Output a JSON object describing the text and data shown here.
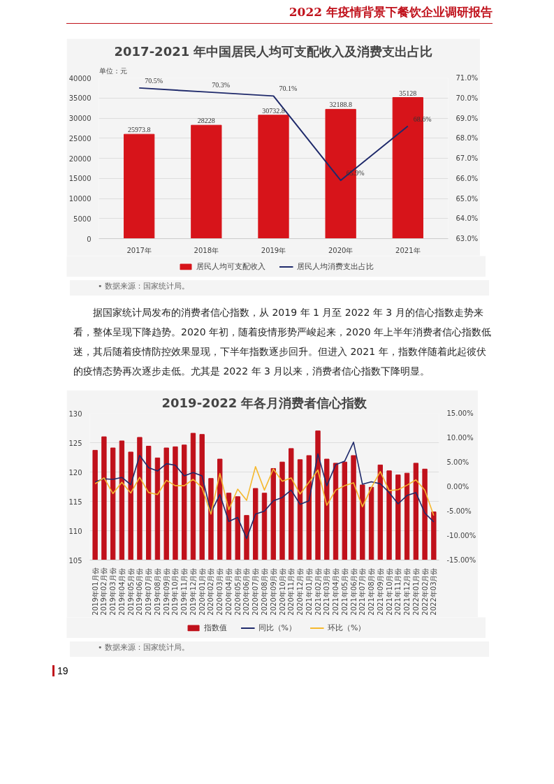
{
  "chart_data": [
    {
      "type": "other",
      "annotations": [
        "2022 年疫情背景下餐饮企业调研报告"
      ]
    },
    {
      "type": "bar",
      "title": "2017-2021 年中国居民人均可支配收入及消费支出占比",
      "ylabel": "单位：元",
      "categories": [
        "2017年",
        "2018年",
        "2019年",
        "2020年",
        "2021年"
      ],
      "series": [
        {
          "name": "居民人均可支配收入",
          "type": "bar",
          "color": "#d7141a",
          "values": [
            25973.8,
            28228,
            30732.8,
            32188.8,
            35128
          ],
          "value_labels": [
            "25973.8",
            "28228",
            "30732.8",
            "32188.8",
            "35128"
          ]
        },
        {
          "name": "居民人均消费支出占比",
          "type": "line",
          "axis": "y2",
          "color": "#1f2a6b",
          "values": [
            70.5,
            70.3,
            70.1,
            65.9,
            68.6
          ],
          "value_labels": [
            "70.5%",
            "70.3%",
            "70.1%",
            "65.9%",
            "68.6%"
          ]
        }
      ],
      "ylim": [
        0,
        40000
      ],
      "yticks": [
        0,
        5000,
        10000,
        15000,
        20000,
        25000,
        30000,
        35000,
        40000
      ],
      "y2lim": [
        63,
        71
      ],
      "y2ticks": [
        {
          "value": 63,
          "label": "63.0%"
        },
        {
          "value": 64,
          "label": "64.0%"
        },
        {
          "value": 65,
          "label": "65.0%"
        },
        {
          "value": 66,
          "label": "66.0%"
        },
        {
          "value": 67,
          "label": "67.0%"
        },
        {
          "value": 68,
          "label": "68.0%"
        },
        {
          "value": 69,
          "label": "69.0%"
        },
        {
          "value": 70,
          "label": "70.0%"
        },
        {
          "value": 71,
          "label": "71.0%"
        }
      ],
      "grid": "y",
      "legend": "bottom",
      "marker": "none",
      "annotations": [
        "• 数据来源：国家统计局。"
      ]
    },
    {
      "type": "other",
      "annotations": [
        "据国家统计局发布的消费者信心指数，从 2019 年 1 月至 2022 年 3 月的信心指数走势来看，整体呈现下降趋势。2020 年初，随着疫情形势严峻起来，2020 年上半年消费者信心指数低迷，其后随着疫情防控效果显现，下半年指数逐步回升。但进入 2021 年，指数伴随着此起彼伏的疫情态势再次逐步走低。尤其是 2022 年 3 月以来，消费者信心指数下降明显。"
      ]
    },
    {
      "type": "bar",
      "title": "2019-2022 年各月消费者信心指数",
      "categories": [
        "2019年01月份",
        "2019年02月份",
        "2019年03月份",
        "2019年04月份",
        "2019年05月份",
        "2019年06月份",
        "2019年07月份",
        "2019年08月份",
        "2019年09月份",
        "2019年10月份",
        "2019年11月份",
        "2019年12月份",
        "2020年01月份",
        "2020年02月份",
        "2020年03月份",
        "2020年04月份",
        "2020年05月份",
        "2020年06月份",
        "2020年07月份",
        "2020年08月份",
        "2020年09月份",
        "2020年10月份",
        "2020年11月份",
        "2020年12月份",
        "2021年01月份",
        "2021年02月份",
        "2021年03月份",
        "2021年04月份",
        "2021年05月份",
        "2021年06月份",
        "2021年07月份",
        "2021年08月份",
        "2021年09月份",
        "2021年10月份",
        "2021年11月份",
        "2021年12月份",
        "2022年01月份",
        "2022年02月份",
        "2022年03月份"
      ],
      "series": [
        {
          "name": "指数值",
          "type": "bar",
          "color": "#c0111b",
          "values": [
            123.7,
            126.0,
            124.1,
            125.3,
            123.4,
            125.9,
            124.4,
            122.4,
            124.1,
            124.3,
            124.6,
            126.6,
            126.4,
            118.9,
            122.2,
            116.4,
            115.8,
            112.6,
            117.2,
            116.4,
            120.6,
            121.7,
            124.0,
            122.1,
            122.8,
            127.0,
            122.2,
            121.5,
            121.7,
            122.8,
            117.8,
            117.4,
            121.2,
            120.2,
            119.5,
            119.8,
            121.5,
            120.5,
            113.2
          ]
        },
        {
          "name": "同比（%）",
          "type": "line",
          "axis": "y2",
          "color": "#1f2a6b",
          "values": [
            1.0,
            1.6,
            1.5,
            1.9,
            0.4,
            6.4,
            3.9,
            3.2,
            4.7,
            4.4,
            2.2,
            2.9,
            2.2,
            -5.3,
            -1.6,
            -7.1,
            -6.3,
            -10.6,
            -5.6,
            -5.0,
            -2.9,
            -2.2,
            -0.7,
            -3.6,
            -2.9,
            6.7,
            0.2,
            4.5,
            5.2,
            9.1,
            0.5,
            1.0,
            0.6,
            -1.2,
            -3.5,
            -1.8,
            -1.2,
            -5.4,
            -7.2
          ]
        },
        {
          "name": "环比（%）",
          "type": "line",
          "axis": "y2",
          "color": "#f5b82e",
          "values": [
            0.6,
            1.8,
            -1.4,
            0.9,
            -1.3,
            1.9,
            -1.2,
            -1.6,
            1.3,
            0.2,
            0.2,
            1.5,
            -0.2,
            -5.6,
            2.7,
            -4.7,
            -0.5,
            -2.8,
            4.1,
            -0.7,
            3.6,
            1.1,
            1.8,
            -1.5,
            0.9,
            3.4,
            -3.8,
            -0.7,
            0.2,
            0.8,
            -4.1,
            -0.2,
            3.1,
            -0.8,
            -0.6,
            0.3,
            1.4,
            -0.7,
            -5.9
          ]
        }
      ],
      "ylim": [
        105,
        130
      ],
      "yticks": [
        105,
        110,
        115,
        120,
        125,
        130
      ],
      "y2lim": [
        -15,
        15
      ],
      "y2ticks": [
        {
          "value": -15,
          "label": "-15.00%"
        },
        {
          "value": -10,
          "label": "-10.00%"
        },
        {
          "value": -5,
          "label": "-5.00%"
        },
        {
          "value": 0,
          "label": "0.00%"
        },
        {
          "value": 5,
          "label": "5.00%"
        },
        {
          "value": 10,
          "label": "10.00%"
        },
        {
          "value": 15,
          "label": "15.00%"
        }
      ],
      "grid": "y",
      "legend": "bottom",
      "marker": "none",
      "annotations": [
        "• 数据来源：国家统计局。"
      ]
    },
    {
      "type": "other",
      "annotations": [
        "19"
      ]
    }
  ]
}
